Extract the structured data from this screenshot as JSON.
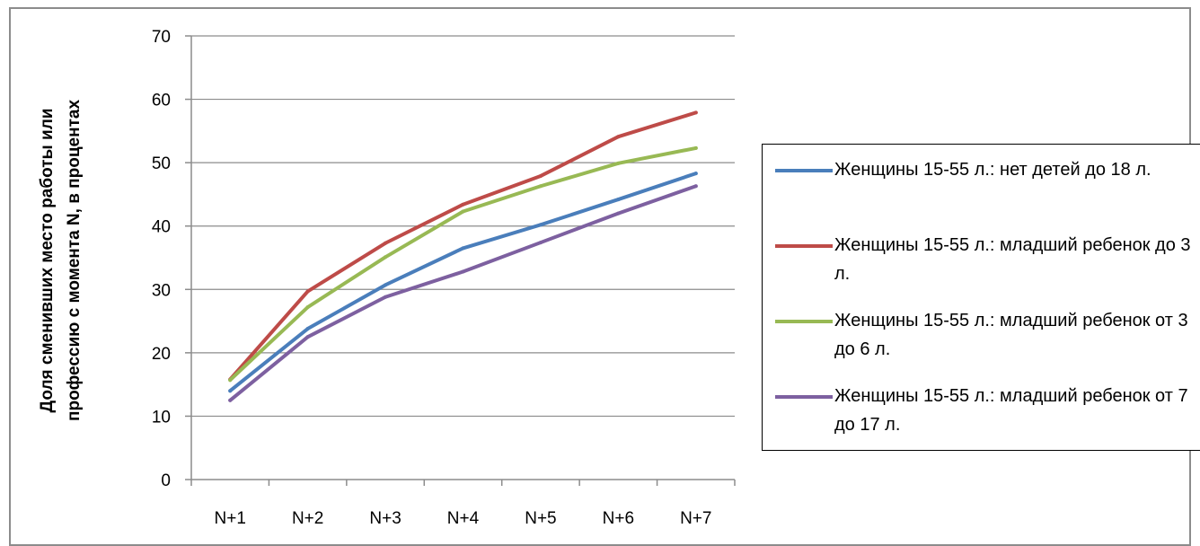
{
  "chart_data": {
    "type": "line",
    "title": "",
    "xlabel": "",
    "ylabel_line1": "Доля сменивших место работы или",
    "ylabel_line2": "профессию с момента N, в процентах",
    "ylim": [
      0,
      70
    ],
    "yticks": [
      0,
      10,
      20,
      30,
      40,
      50,
      60,
      70
    ],
    "grid": true,
    "legend_position": "right",
    "categories": [
      "N+1",
      "N+2",
      "N+3",
      "N+4",
      "N+5",
      "N+6",
      "N+7"
    ],
    "series": [
      {
        "name": "Женщины 15-55 л.: нет детей до 18 л.",
        "color": "#4a7ebb",
        "values": [
          14,
          23.8,
          30.7,
          36.5,
          40.2,
          44.2,
          48.3
        ]
      },
      {
        "name": "Женщины 15-55 л.: младший ребенок до 3 л.",
        "color": "#be4b48",
        "values": [
          15.8,
          29.7,
          37.3,
          43.4,
          47.9,
          54.1,
          57.9
        ]
      },
      {
        "name": "Женщины 15-55 л.: младший ребенок от 3 до 6 л.",
        "color": "#98b954",
        "values": [
          15.7,
          27.2,
          35.1,
          42.3,
          46.3,
          49.9,
          52.3
        ]
      },
      {
        "name": "Женщины 15-55 л.: младший ребенок от 7 до 17 л.",
        "color": "#7d60a0",
        "values": [
          12.5,
          22.5,
          28.8,
          32.8,
          37.4,
          42.0,
          46.3
        ]
      }
    ]
  }
}
